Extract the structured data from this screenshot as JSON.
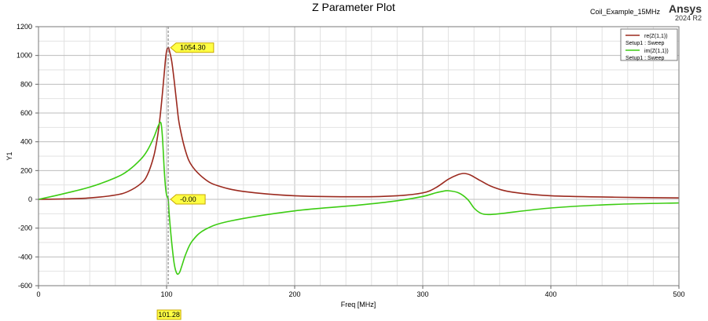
{
  "header": {
    "title": "Z Parameter Plot",
    "design": "Coil_Example_15MHz",
    "brand": "Ansys",
    "version": "2024 R2"
  },
  "colors": {
    "real": "#9b2a1f",
    "imag": "#3ccc12",
    "grid": "#c8c8c8",
    "marker_fill": "#ffff44",
    "marker_border": "#c8a800"
  },
  "chart_data": {
    "type": "line",
    "title": "Z Parameter Plot",
    "xlabel": "Freq [MHz]",
    "ylabel": "Y1",
    "xlim": [
      0,
      500
    ],
    "ylim": [
      -600,
      1200
    ],
    "xticks": [
      0,
      100,
      200,
      300,
      400,
      500
    ],
    "yticks": [
      -600,
      -400,
      -200,
      0,
      200,
      400,
      600,
      800,
      1000,
      1200
    ],
    "grid": true,
    "legend_position": "top-right",
    "series": [
      {
        "name": "re(Z(1,1))",
        "setup": "Setup1 : Sweep",
        "color": "#9b2a1f",
        "x": [
          0,
          20,
          40,
          60,
          70,
          80,
          85,
          90,
          93,
          95,
          97,
          99,
          100,
          101.28,
          102,
          104,
          106,
          108,
          110,
          115,
          120,
          130,
          140,
          160,
          200,
          250,
          280,
          300,
          310,
          320,
          327,
          332,
          337,
          345,
          355,
          370,
          400,
          450,
          500
        ],
        "values": [
          0,
          3,
          10,
          30,
          55,
          110,
          170,
          300,
          440,
          580,
          760,
          960,
          1030,
          1054.3,
          1040,
          960,
          820,
          660,
          520,
          330,
          230,
          140,
          95,
          55,
          25,
          18,
          25,
          45,
          80,
          140,
          170,
          180,
          170,
          130,
          85,
          50,
          25,
          15,
          10
        ]
      },
      {
        "name": "im(Z(1,1))",
        "setup": "Setup1 : Sweep",
        "color": "#3ccc12",
        "x": [
          0,
          20,
          40,
          60,
          70,
          80,
          85,
          90,
          93,
          95,
          96,
          97,
          98,
          99,
          100,
          101.28,
          102,
          104,
          106,
          108,
          110,
          112,
          115,
          120,
          130,
          150,
          200,
          250,
          280,
          300,
          310,
          315,
          320,
          328,
          335,
          340,
          345,
          350,
          360,
          400,
          450,
          500
        ],
        "values": [
          0,
          40,
          85,
          150,
          200,
          280,
          340,
          430,
          500,
          535,
          510,
          400,
          230,
          100,
          30,
          0,
          -100,
          -300,
          -450,
          -515,
          -510,
          -460,
          -380,
          -290,
          -210,
          -150,
          -80,
          -40,
          -10,
          20,
          45,
          55,
          60,
          45,
          0,
          -60,
          -95,
          -105,
          -100,
          -60,
          -35,
          -25
        ]
      }
    ],
    "markers": [
      {
        "label": "1054.30",
        "x": 101.28,
        "y": 1054.3
      },
      {
        "label": "-0.00",
        "x": 101.28,
        "y": 0
      }
    ],
    "cursor": {
      "x": 101.28,
      "label": "101.28"
    }
  }
}
